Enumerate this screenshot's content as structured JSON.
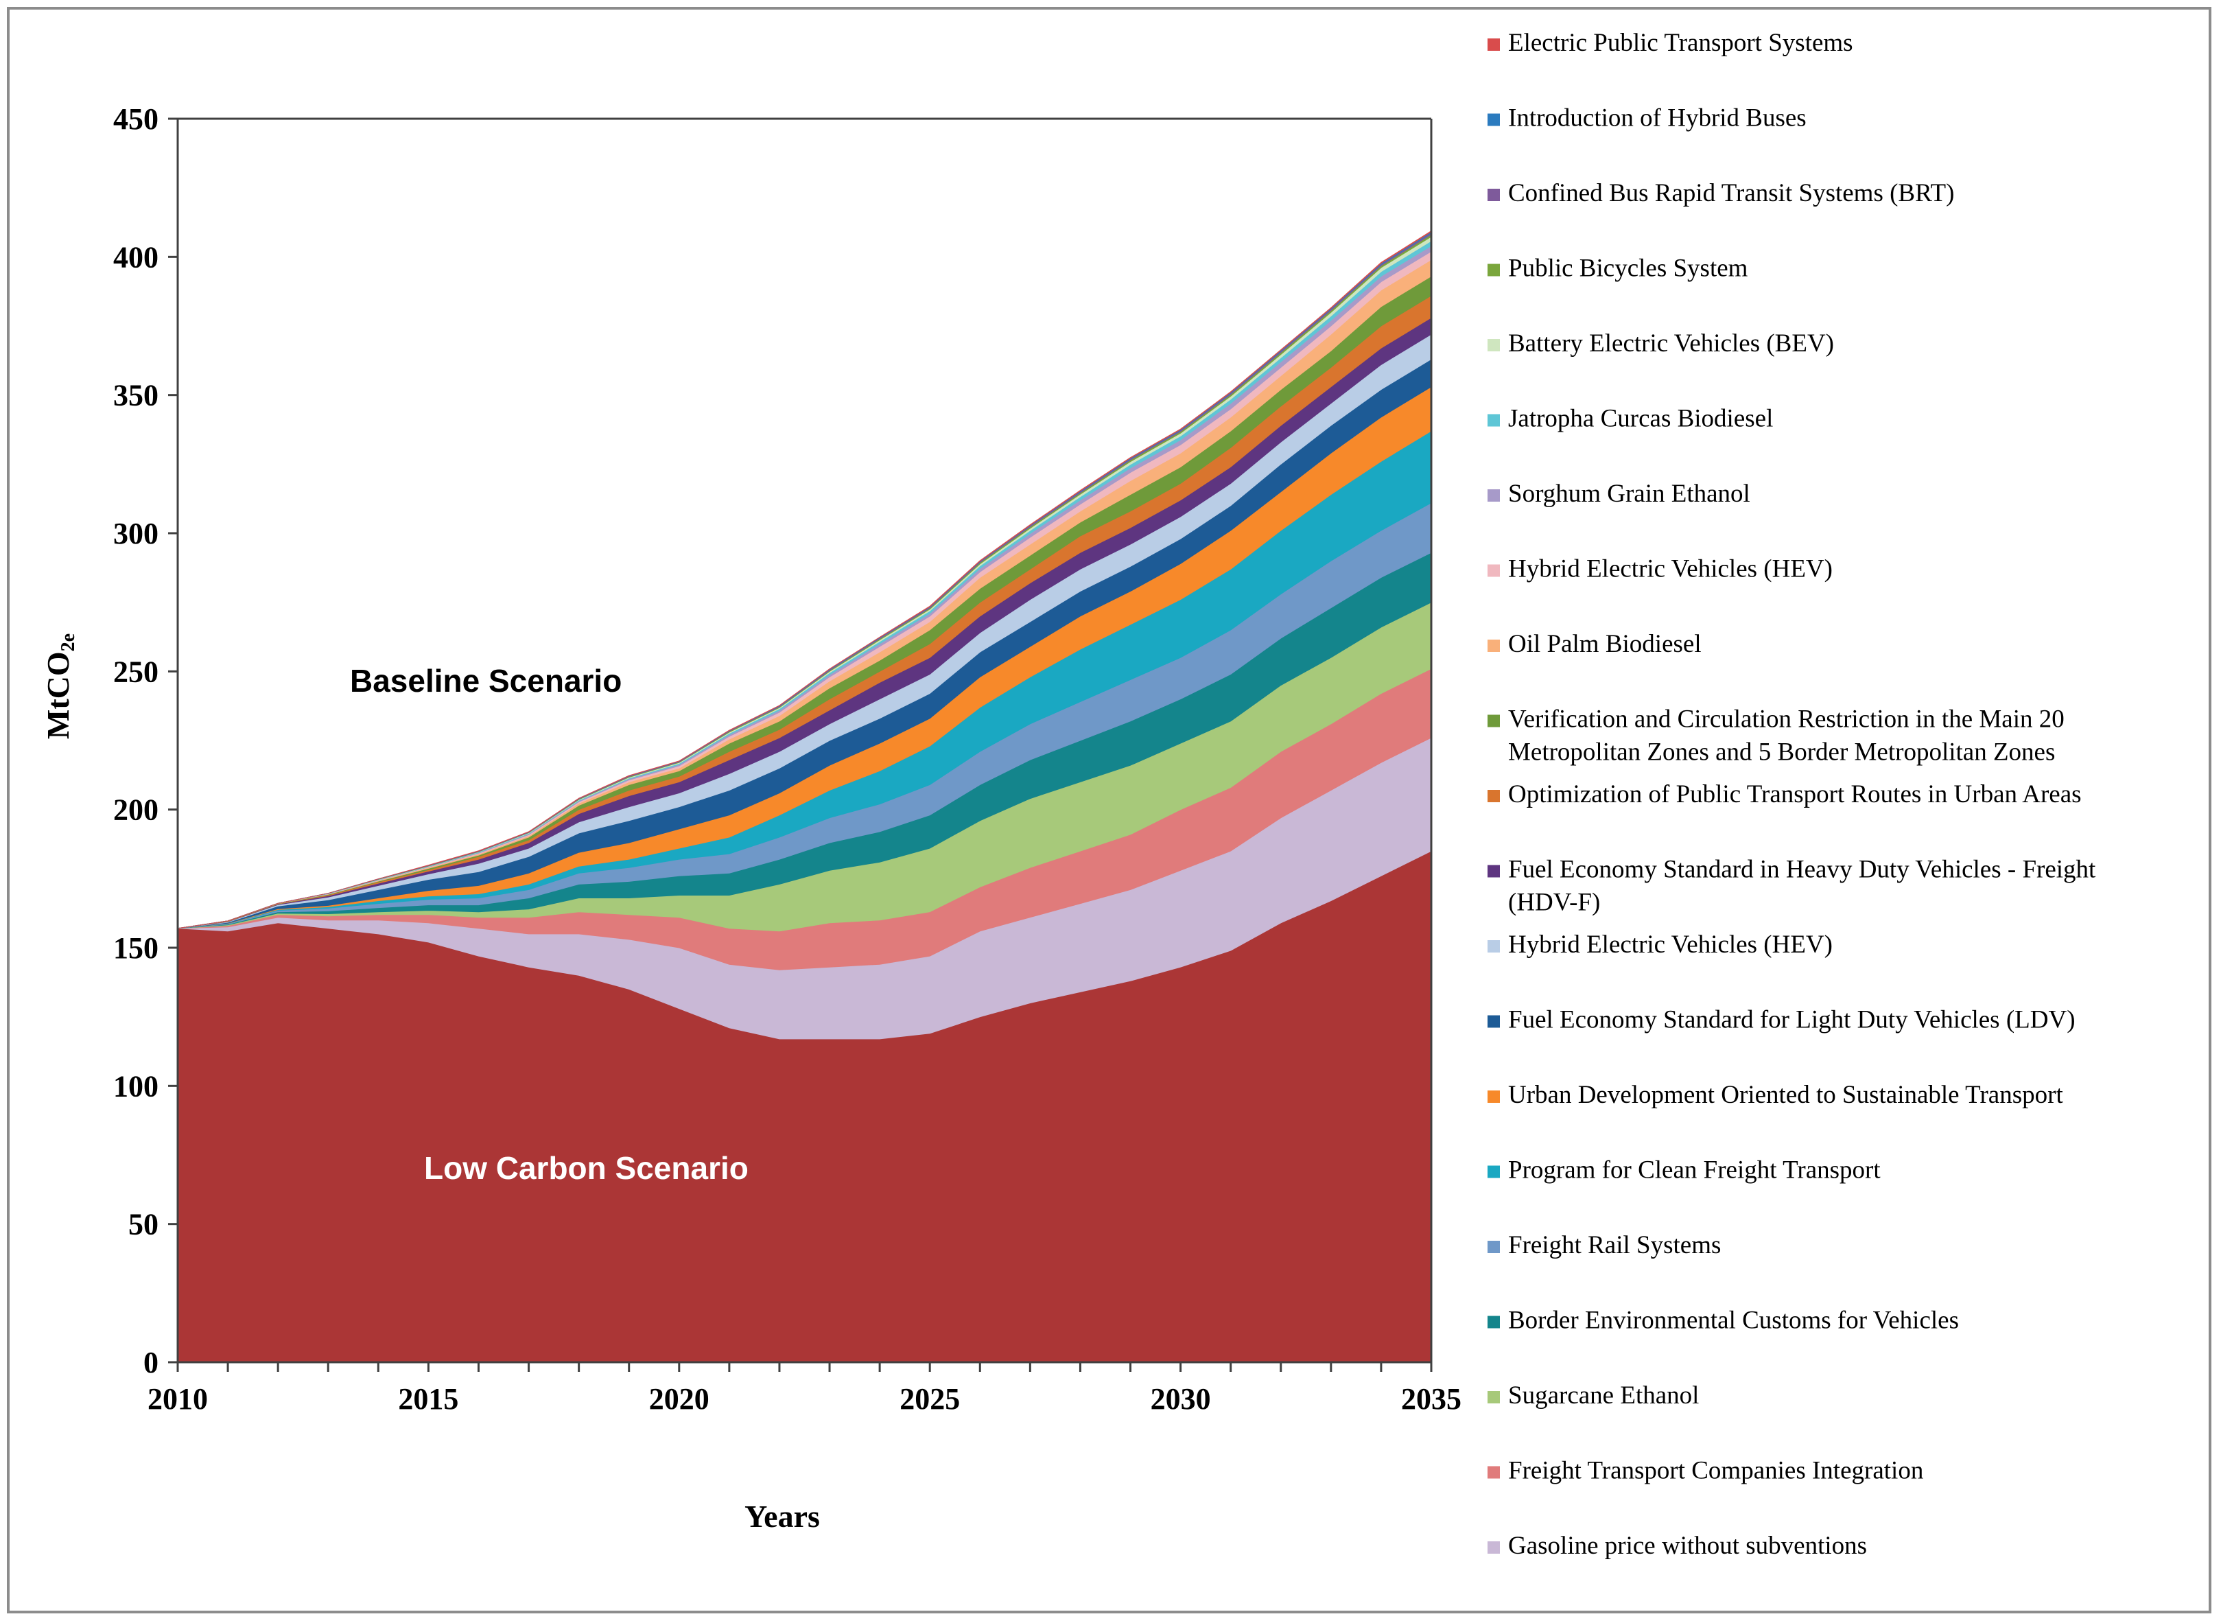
{
  "chart_data": {
    "type": "area",
    "stacked": true,
    "title": "",
    "xlabel": "Years",
    "ylabel": "MtCO",
    "ylabel_subscript": "2e",
    "xlim": [
      2010,
      2035
    ],
    "ylim": [
      0,
      450
    ],
    "x_ticks": [
      "2010",
      "2015",
      "2020",
      "2025",
      "2030",
      "2035"
    ],
    "y_ticks": [
      "0",
      "50",
      "100",
      "150",
      "200",
      "250",
      "300",
      "350",
      "400",
      "450"
    ],
    "x": [
      2010,
      2011,
      2012,
      2013,
      2014,
      2015,
      2016,
      2017,
      2018,
      2019,
      2020,
      2021,
      2022,
      2023,
      2024,
      2025,
      2026,
      2027,
      2028,
      2029,
      2030,
      2031,
      2032,
      2033,
      2034,
      2035
    ],
    "annotations": [
      "Baseline Scenario",
      "Low Carbon Scenario"
    ],
    "series": [
      {
        "name": "Low Carbon Scenario",
        "color": "#ab3636",
        "values": [
          157,
          156,
          159,
          157,
          155,
          152,
          147,
          143,
          140,
          135,
          128,
          121,
          117,
          117,
          117,
          119,
          125,
          130,
          134,
          138,
          143,
          149,
          159,
          167,
          176,
          185
        ]
      },
      {
        "name": "Gasoline price without subventions",
        "color": "#c9b8d6",
        "values": [
          0,
          1.5,
          2,
          3,
          5,
          7,
          10,
          12,
          15,
          18,
          22,
          23,
          25,
          26,
          27,
          28,
          31,
          31,
          32,
          33,
          35,
          36,
          38,
          40,
          41,
          41
        ]
      },
      {
        "name": "Freight Transport Companies Integration",
        "color": "#e07b7b",
        "values": [
          0,
          0.5,
          1,
          1.5,
          2,
          3,
          4,
          6,
          8,
          9,
          11,
          13,
          14,
          16,
          16,
          16,
          16,
          18,
          19,
          20,
          22,
          23,
          24,
          24,
          25,
          25
        ]
      },
      {
        "name": "Sugarcane Ethanol",
        "color": "#a7c97a",
        "values": [
          0,
          0.3,
          0.5,
          0.8,
          1,
          1.5,
          2,
          3,
          5,
          6,
          8,
          12,
          17,
          19,
          21,
          23,
          24,
          25,
          25,
          25,
          24,
          24,
          24,
          24,
          24,
          24
        ]
      },
      {
        "name": "Border Environmental Customs for Vehicles",
        "color": "#14858c",
        "values": [
          0,
          0.2,
          0.5,
          1,
          1.5,
          2,
          2.5,
          4,
          5,
          6,
          7,
          8,
          9,
          10,
          11,
          12,
          13,
          14,
          15,
          16,
          16,
          17,
          17,
          18,
          18,
          18
        ]
      },
      {
        "name": "Freight Rail Systems",
        "color": "#6f98c8",
        "values": [
          0,
          0.2,
          0.5,
          1,
          1.5,
          2,
          2.5,
          3,
          4,
          5,
          6,
          7,
          8,
          9,
          10,
          11,
          12,
          13,
          14,
          15,
          15,
          16,
          16,
          17,
          17,
          18
        ]
      },
      {
        "name": "Program for Clean Freight Transport",
        "color": "#1aa8c2",
        "values": [
          0,
          0.1,
          0.3,
          0.5,
          1,
          1.2,
          1.5,
          2,
          2.5,
          3,
          4,
          6,
          8,
          10,
          12,
          14,
          16,
          17,
          19,
          20,
          21,
          22,
          23,
          24,
          25,
          26
        ]
      },
      {
        "name": "Urban Development Oriented to Sustainable Transport",
        "color": "#f7892a",
        "values": [
          0,
          0.1,
          0.3,
          0.5,
          1,
          2,
          3,
          4,
          5,
          6,
          7,
          8,
          8,
          9,
          10,
          10,
          11,
          11,
          12,
          12,
          13,
          14,
          14,
          15,
          16,
          16
        ]
      },
      {
        "name": "Fuel Economy Standard for Light Duty Vehicles (LDV)",
        "color": "#1d5b96",
        "values": [
          0,
          0.3,
          1,
          2,
          3,
          4,
          5,
          6,
          7,
          8,
          8,
          9,
          9,
          9,
          9,
          9,
          9,
          9,
          9,
          9,
          9,
          9,
          10,
          10,
          10,
          10
        ]
      },
      {
        "name": "Hybrid Electric Vehicles (HEV)",
        "color": "#b9cde6",
        "values": [
          0,
          0.2,
          0.5,
          1,
          1.5,
          2,
          3,
          3,
          4,
          5,
          5,
          6,
          6,
          6,
          7,
          7,
          7,
          8,
          8,
          8,
          8,
          8,
          8,
          8,
          9,
          9
        ]
      },
      {
        "name": "Fuel Economy Standard in Heavy Duty Vehicles - Freight (HDV-F)",
        "color": "#5e3580",
        "values": [
          0,
          0.1,
          0.2,
          0.5,
          0.8,
          1,
          1.5,
          2,
          3,
          4,
          4,
          5,
          5,
          5,
          6,
          6,
          6,
          6,
          6,
          6,
          6,
          6,
          6,
          6,
          6,
          6
        ]
      },
      {
        "name": "Optimization of Public Transport Routes in Urban Areas",
        "color": "#d9752e",
        "values": [
          0,
          0.1,
          0.1,
          0.3,
          0.5,
          0.5,
          1,
          1,
          1.5,
          2,
          2,
          3,
          3,
          4,
          4,
          5,
          5,
          5,
          6,
          6,
          6,
          7,
          7,
          7,
          8,
          8
        ]
      },
      {
        "name": "Verification and Circulation Restriction in the Main 20 Metropolitan Zones and 5 Border Metropolitan Zones",
        "color": "#6f9a3a",
        "values": [
          0,
          0.1,
          0.1,
          0.2,
          0.3,
          0.5,
          0.5,
          1,
          1.5,
          2,
          2,
          3,
          3,
          4,
          4,
          5,
          5,
          5,
          5,
          6,
          6,
          6,
          6,
          6,
          7,
          7
        ]
      },
      {
        "name": "Oil Palm Biodiesel",
        "color": "#f9b07a",
        "values": [
          0,
          0,
          0.1,
          0.1,
          0.2,
          0.3,
          0.4,
          0.5,
          0.8,
          1,
          1,
          1.5,
          2,
          2.5,
          3,
          3,
          4,
          4,
          4,
          5,
          5,
          5,
          5,
          6,
          6,
          6
        ]
      },
      {
        "name": "Hybrid Electric Vehicles (HEV)",
        "color": "#f0b8bf",
        "values": [
          0,
          0,
          0,
          0.1,
          0.1,
          0.2,
          0.3,
          0.4,
          0.5,
          0.7,
          0.8,
          1,
          1.2,
          1.5,
          2,
          2,
          2,
          2.5,
          2.5,
          3,
          3,
          3,
          3,
          3,
          3,
          3
        ]
      },
      {
        "name": "Sorghum Grain Ethanol",
        "color": "#a79ac9",
        "values": [
          0,
          0,
          0,
          0.1,
          0.1,
          0.1,
          0.2,
          0.3,
          0.3,
          0.4,
          0.5,
          0.6,
          0.7,
          0.8,
          1,
          1,
          1.2,
          1.4,
          1.5,
          1.6,
          1.8,
          2,
          2,
          2,
          2,
          2
        ]
      },
      {
        "name": "Jatropha Curcas Biodiesel",
        "color": "#5ec6d6",
        "values": [
          0,
          0,
          0,
          0.1,
          0.1,
          0.1,
          0.2,
          0.2,
          0.3,
          0.3,
          0.4,
          0.5,
          0.6,
          0.7,
          0.8,
          0.9,
          1,
          1.1,
          1.2,
          1.3,
          1.4,
          1.5,
          1.5,
          1.6,
          1.7,
          1.8
        ]
      },
      {
        "name": "Battery Electric Vehicles (BEV)",
        "color": "#cfe6bf",
        "values": [
          0,
          0,
          0,
          0,
          0.1,
          0.1,
          0.1,
          0.2,
          0.2,
          0.3,
          0.3,
          0.4,
          0.4,
          0.5,
          0.6,
          0.6,
          0.7,
          0.8,
          0.9,
          1,
          1,
          1.1,
          1.2,
          1.3,
          1.4,
          1.5
        ]
      },
      {
        "name": "Public Bicycles System",
        "color": "#7aa63c",
        "values": [
          0,
          0,
          0,
          0,
          0.1,
          0.1,
          0.1,
          0.1,
          0.2,
          0.2,
          0.2,
          0.3,
          0.3,
          0.3,
          0.4,
          0.4,
          0.5,
          0.5,
          0.5,
          0.6,
          0.6,
          0.6,
          0.7,
          0.7,
          0.7,
          0.8
        ]
      },
      {
        "name": "Confined Bus Rapid Transit Systems (BRT)",
        "color": "#7e5a9b",
        "values": [
          0,
          0,
          0,
          0,
          0.1,
          0.1,
          0.1,
          0.1,
          0.1,
          0.2,
          0.2,
          0.2,
          0.2,
          0.3,
          0.3,
          0.3,
          0.3,
          0.4,
          0.4,
          0.4,
          0.4,
          0.5,
          0.5,
          0.5,
          0.5,
          0.6
        ]
      },
      {
        "name": "Introduction of Hybrid Buses",
        "color": "#2b7bbf",
        "values": [
          0,
          0,
          0,
          0,
          0,
          0.1,
          0.1,
          0.1,
          0.1,
          0.1,
          0.1,
          0.1,
          0.2,
          0.2,
          0.2,
          0.2,
          0.2,
          0.2,
          0.3,
          0.3,
          0.3,
          0.3,
          0.3,
          0.3,
          0.4,
          0.4
        ]
      },
      {
        "name": "Electric Public Transport Systems",
        "color": "#d94c4c",
        "values": [
          0,
          0,
          0,
          0,
          0,
          0.1,
          0.1,
          0.1,
          0.1,
          0.1,
          0.1,
          0.1,
          0.1,
          0.1,
          0.1,
          0.2,
          0.2,
          0.2,
          0.2,
          0.2,
          0.2,
          0.2,
          0.2,
          0.2,
          0.3,
          0.3
        ]
      }
    ],
    "legend": [
      {
        "label": "Electric Public Transport Systems",
        "color": "#d94c4c"
      },
      {
        "label": "Introduction of Hybrid Buses",
        "color": "#2b7bbf"
      },
      {
        "label": "Confined Bus Rapid Transit Systems (BRT)",
        "color": "#7e5a9b"
      },
      {
        "label": "Public Bicycles System",
        "color": "#7aa63c"
      },
      {
        "label": "Battery Electric Vehicles (BEV)",
        "color": "#cfe6bf"
      },
      {
        "label": "Jatropha Curcas Biodiesel",
        "color": "#5ec6d6"
      },
      {
        "label": "Sorghum Grain Ethanol",
        "color": "#a79ac9"
      },
      {
        "label": "Hybrid Electric Vehicles (HEV)",
        "color": "#f0b8bf"
      },
      {
        "label": "Oil Palm Biodiesel",
        "color": "#f9b07a"
      },
      {
        "label": "Verification and Circulation Restriction in the Main 20",
        "label_line2": "Metropolitan Zones and 5 Border Metropolitan Zones",
        "color": "#6f9a3a"
      },
      {
        "label": "Optimization of Public Transport Routes in Urban Areas",
        "color": "#d9752e"
      },
      {
        "label": "Fuel Economy Standard in Heavy Duty Vehicles - Freight",
        "label_line2": "(HDV-F)",
        "color": "#5e3580"
      },
      {
        "label": "Hybrid Electric Vehicles (HEV)",
        "color": "#b9cde6"
      },
      {
        "label": "Fuel Economy Standard for Light Duty Vehicles (LDV)",
        "color": "#1d5b96"
      },
      {
        "label": "Urban Development Oriented to Sustainable Transport",
        "color": "#f7892a"
      },
      {
        "label": "Program for Clean Freight Transport",
        "color": "#1aa8c2"
      },
      {
        "label": "Freight Rail Systems",
        "color": "#6f98c8"
      },
      {
        "label": "Border Environmental Customs for Vehicles",
        "color": "#14858c"
      },
      {
        "label": "Sugarcane Ethanol",
        "color": "#a7c97a"
      },
      {
        "label": "Freight Transport Companies Integration",
        "color": "#e07b7b"
      },
      {
        "label": "Gasoline price without subventions",
        "color": "#c9b8d6"
      }
    ],
    "annotation_colors": {
      "baseline": "#000000",
      "low_carbon": "#ffffff"
    }
  }
}
